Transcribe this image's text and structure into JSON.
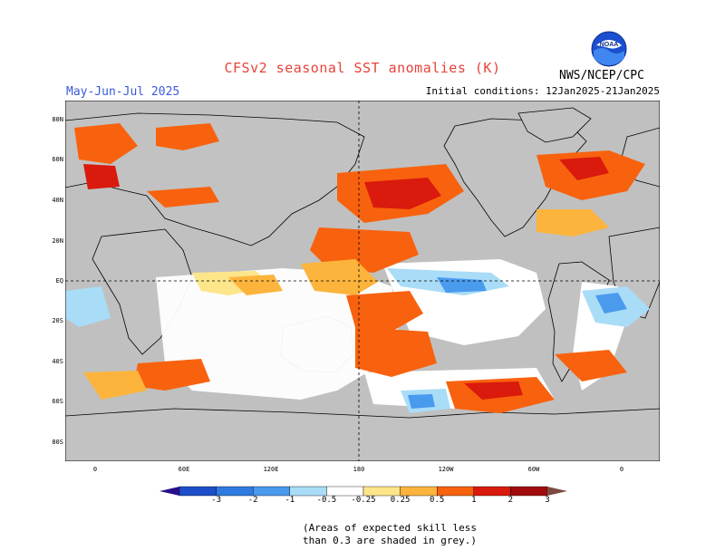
{
  "header": {
    "title": "CFSv2 seasonal SST anomalies (K)",
    "season": "May-Jun-Jul 2025",
    "initial_conditions": "Initial conditions: 12Jan2025-21Jan2025",
    "agency": "NWS/NCEP/CPC",
    "logo_text": "NOAA"
  },
  "axes": {
    "y_labels": [
      "80N",
      "60N",
      "40N",
      "20N",
      "EQ",
      "20S",
      "40S",
      "60S",
      "80S"
    ],
    "x_labels": [
      "0",
      "60E",
      "120E",
      "180",
      "120W",
      "60W",
      "0"
    ]
  },
  "colorbar": {
    "labels": [
      "-3",
      "-2",
      "-1",
      "-0.5",
      "-0.25",
      "0.25",
      "0.5",
      "1",
      "2",
      "3"
    ],
    "colors": [
      "#2a0f8c",
      "#1c4fc8",
      "#2f7ae0",
      "#4a9aee",
      "#a9dcf7",
      "#ffffff",
      "#fde58a",
      "#fcb43c",
      "#f8620e",
      "#d91a0c",
      "#a00c0c",
      "#7a4a40"
    ]
  },
  "legend_note": {
    "line1": "(Areas of expected skill less",
    "line2": "than 0.3 are shaded in grey.)"
  },
  "colors": {
    "title": "#e8423a",
    "season": "#3a5bd9",
    "skill_mask_grey": "#c0c0c0"
  }
}
